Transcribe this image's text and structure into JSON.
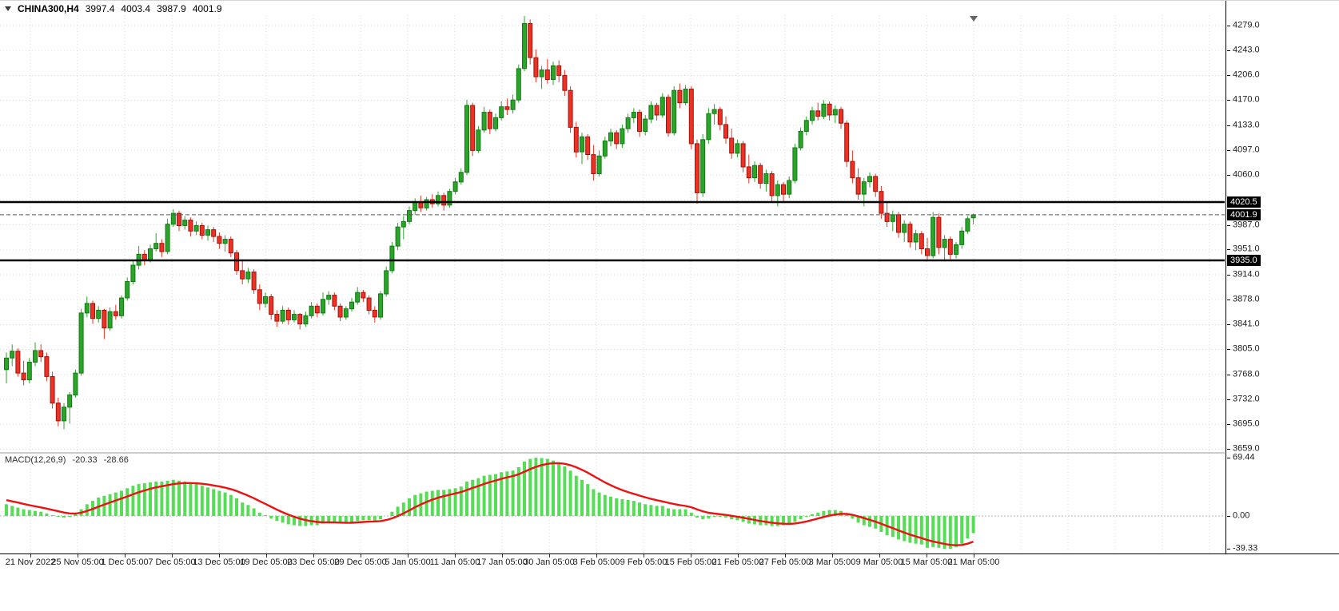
{
  "header": {
    "symbol": "CHINA300,H4",
    "open": "3997.4",
    "high": "4003.4",
    "low": "3987.9",
    "close": "4001.9"
  },
  "colors": {
    "background": "#ffffff",
    "up": "#2aa52a",
    "up_border": "#117a11",
    "down": "#ee3124",
    "down_border": "#9d140c",
    "macd_hist": "#55dd55",
    "macd_signal": "#ee1111",
    "grid": "#d8d8d8",
    "level_line": "#000000",
    "last_price_line": "#555555",
    "badge_bg": "#000000",
    "badge_text": "#ffffff",
    "axis_text": "#1b1b1b"
  },
  "chart_data": {
    "type": "candlestick",
    "title": "CHINA300,H4",
    "symbol": "CHINA300",
    "timeframe": "H4",
    "ohlc_display": "3997.4 4003.4 3987.9 4001.9",
    "price_axis": {
      "start": 4279.0,
      "step": 36.5,
      "visible_range": [
        3654,
        4294
      ],
      "labels": [
        "4279.0",
        "4243.0",
        "4206.0",
        "4170.0",
        "4133.0",
        "4097.0",
        "4060.0",
        "3987.0",
        "3951.0",
        "3914.0",
        "3878.0",
        "3841.0",
        "3805.0",
        "3768.0",
        "3732.0",
        "3695.0",
        "3659.0"
      ]
    },
    "horizontal_levels": [
      {
        "price": 4020.5,
        "label": "4020.5"
      },
      {
        "price": 3935.0,
        "label": "3935.0"
      }
    ],
    "last_price": {
      "price": 4001.9,
      "label": "4001.9"
    },
    "time_labels": [
      "21 Nov 2022",
      "25 Nov 05:00",
      "1 Dec 05:00",
      "7 Dec 05:00",
      "13 Dec 05:00",
      "19 Dec 05:00",
      "23 Dec 05:00",
      "29 Dec 05:00",
      "5 Jan 05:00",
      "11 Jan 05:00",
      "17 Jan 05:00",
      "30 Jan 05:00",
      "3 Feb 05:00",
      "9 Feb 05:00",
      "15 Feb 05:00",
      "21 Feb 05:00",
      "27 Feb 05:00",
      "3 Mar 05:00",
      "9 Mar 05:00",
      "15 Mar 05:00",
      "21 Mar 05:00"
    ],
    "candles_ohlc": [
      [
        3775,
        3800,
        3755,
        3792
      ],
      [
        3792,
        3812,
        3780,
        3802
      ],
      [
        3802,
        3806,
        3765,
        3770
      ],
      [
        3770,
        3788,
        3752,
        3760
      ],
      [
        3760,
        3792,
        3755,
        3786
      ],
      [
        3786,
        3815,
        3780,
        3803
      ],
      [
        3803,
        3812,
        3786,
        3794
      ],
      [
        3794,
        3800,
        3758,
        3765
      ],
      [
        3765,
        3772,
        3718,
        3726
      ],
      [
        3726,
        3734,
        3692,
        3700
      ],
      [
        3700,
        3726,
        3688,
        3720
      ],
      [
        3720,
        3742,
        3696,
        3738
      ],
      [
        3738,
        3775,
        3734,
        3770
      ],
      [
        3770,
        3864,
        3766,
        3858
      ],
      [
        3858,
        3882,
        3852,
        3872
      ],
      [
        3872,
        3876,
        3842,
        3850
      ],
      [
        3850,
        3868,
        3844,
        3862
      ],
      [
        3862,
        3864,
        3820,
        3836
      ],
      [
        3836,
        3866,
        3832,
        3860
      ],
      [
        3860,
        3870,
        3848,
        3854
      ],
      [
        3854,
        3884,
        3850,
        3880
      ],
      [
        3880,
        3910,
        3876,
        3904
      ],
      [
        3904,
        3934,
        3900,
        3928
      ],
      [
        3928,
        3956,
        3922,
        3944
      ],
      [
        3944,
        3950,
        3928,
        3936
      ],
      [
        3936,
        3958,
        3932,
        3952
      ],
      [
        3952,
        3975,
        3948,
        3960
      ],
      [
        3960,
        3966,
        3940,
        3948
      ],
      [
        3948,
        3996,
        3944,
        3988
      ],
      [
        3988,
        4010,
        3984,
        4004
      ],
      [
        4004,
        4008,
        3978,
        3986
      ],
      [
        3986,
        4000,
        3980,
        3994
      ],
      [
        3994,
        3998,
        3970,
        3978
      ],
      [
        3978,
        3992,
        3972,
        3986
      ],
      [
        3986,
        3990,
        3966,
        3972
      ],
      [
        3972,
        3986,
        3964,
        3980
      ],
      [
        3980,
        3984,
        3962,
        3970
      ],
      [
        3970,
        3976,
        3952,
        3960
      ],
      [
        3960,
        3972,
        3948,
        3966
      ],
      [
        3966,
        3970,
        3940,
        3946
      ],
      [
        3946,
        3950,
        3914,
        3920
      ],
      [
        3920,
        3934,
        3900,
        3908
      ],
      [
        3908,
        3924,
        3902,
        3918
      ],
      [
        3918,
        3922,
        3886,
        3892
      ],
      [
        3892,
        3900,
        3862,
        3872
      ],
      [
        3872,
        3888,
        3866,
        3882
      ],
      [
        3882,
        3886,
        3848,
        3856
      ],
      [
        3856,
        3862,
        3838,
        3846
      ],
      [
        3846,
        3868,
        3842,
        3862
      ],
      [
        3862,
        3866,
        3841,
        3848
      ],
      [
        3848,
        3862,
        3844,
        3856
      ],
      [
        3856,
        3858,
        3834,
        3842
      ],
      [
        3842,
        3860,
        3838,
        3854
      ],
      [
        3854,
        3874,
        3850,
        3868
      ],
      [
        3868,
        3872,
        3852,
        3858
      ],
      [
        3858,
        3888,
        3854,
        3878
      ],
      [
        3878,
        3890,
        3870,
        3884
      ],
      [
        3884,
        3888,
        3862,
        3868
      ],
      [
        3868,
        3872,
        3846,
        3852
      ],
      [
        3852,
        3868,
        3848,
        3864
      ],
      [
        3864,
        3880,
        3860,
        3874
      ],
      [
        3874,
        3896,
        3870,
        3888
      ],
      [
        3888,
        3892,
        3874,
        3880
      ],
      [
        3880,
        3884,
        3856,
        3862
      ],
      [
        3862,
        3868,
        3844,
        3852
      ],
      [
        3852,
        3890,
        3848,
        3886
      ],
      [
        3886,
        3926,
        3882,
        3920
      ],
      [
        3920,
        3962,
        3916,
        3956
      ],
      [
        3956,
        3990,
        3950,
        3984
      ],
      [
        3984,
        4000,
        3966,
        3992
      ],
      [
        3992,
        4014,
        3988,
        4008
      ],
      [
        4008,
        4026,
        4002,
        4020
      ],
      [
        4020,
        4030,
        4006,
        4012
      ],
      [
        4012,
        4028,
        4008,
        4024
      ],
      [
        4024,
        4032,
        4012,
        4018
      ],
      [
        4018,
        4036,
        4014,
        4030
      ],
      [
        4030,
        4034,
        4008,
        4016
      ],
      [
        4016,
        4040,
        4012,
        4036
      ],
      [
        4036,
        4056,
        4032,
        4050
      ],
      [
        4050,
        4070,
        4046,
        4064
      ],
      [
        4064,
        4170,
        4060,
        4162
      ],
      [
        4162,
        4166,
        4088,
        4096
      ],
      [
        4096,
        4132,
        4092,
        4126
      ],
      [
        4126,
        4160,
        4122,
        4152
      ],
      [
        4152,
        4156,
        4120,
        4128
      ],
      [
        4128,
        4150,
        4124,
        4144
      ],
      [
        4144,
        4168,
        4140,
        4160
      ],
      [
        4160,
        4172,
        4148,
        4156
      ],
      [
        4156,
        4178,
        4150,
        4170
      ],
      [
        4170,
        4222,
        4166,
        4216
      ],
      [
        4216,
        4293,
        4212,
        4282
      ],
      [
        4282,
        4288,
        4222,
        4232
      ],
      [
        4232,
        4244,
        4196,
        4204
      ],
      [
        4204,
        4220,
        4186,
        4214
      ],
      [
        4214,
        4230,
        4194,
        4200
      ],
      [
        4200,
        4226,
        4192,
        4220
      ],
      [
        4220,
        4228,
        4196,
        4206
      ],
      [
        4206,
        4214,
        4176,
        4184
      ],
      [
        4184,
        4190,
        4122,
        4130
      ],
      [
        4130,
        4138,
        4086,
        4094
      ],
      [
        4094,
        4122,
        4076,
        4116
      ],
      [
        4116,
        4120,
        4082,
        4090
      ],
      [
        4090,
        4104,
        4052,
        4062
      ],
      [
        4062,
        4096,
        4058,
        4088
      ],
      [
        4088,
        4116,
        4084,
        4110
      ],
      [
        4110,
        4128,
        4102,
        4122
      ],
      [
        4122,
        4126,
        4098,
        4106
      ],
      [
        4106,
        4134,
        4100,
        4128
      ],
      [
        4128,
        4150,
        4122,
        4144
      ],
      [
        4144,
        4158,
        4136,
        4152
      ],
      [
        4152,
        4156,
        4116,
        4124
      ],
      [
        4124,
        4148,
        4118,
        4142
      ],
      [
        4142,
        4168,
        4136,
        4162
      ],
      [
        4162,
        4166,
        4140,
        4148
      ],
      [
        4148,
        4180,
        4144,
        4174
      ],
      [
        4174,
        4178,
        4116,
        4122
      ],
      [
        4122,
        4190,
        4118,
        4184
      ],
      [
        4184,
        4194,
        4158,
        4166
      ],
      [
        4166,
        4192,
        4162,
        4186
      ],
      [
        4186,
        4190,
        4098,
        4106
      ],
      [
        4106,
        4112,
        4018,
        4034
      ],
      [
        4034,
        4120,
        4028,
        4112
      ],
      [
        4112,
        4158,
        4106,
        4150
      ],
      [
        4150,
        4164,
        4134,
        4156
      ],
      [
        4156,
        4160,
        4126,
        4134
      ],
      [
        4134,
        4146,
        4106,
        4114
      ],
      [
        4114,
        4128,
        4084,
        4092
      ],
      [
        4092,
        4112,
        4086,
        4106
      ],
      [
        4106,
        4110,
        4064,
        4072
      ],
      [
        4072,
        4090,
        4048,
        4056
      ],
      [
        4056,
        4080,
        4050,
        4074
      ],
      [
        4074,
        4078,
        4040,
        4048
      ],
      [
        4048,
        4068,
        4036,
        4062
      ],
      [
        4062,
        4066,
        4020,
        4030
      ],
      [
        4030,
        4052,
        4014,
        4046
      ],
      [
        4046,
        4050,
        4022,
        4032
      ],
      [
        4032,
        4058,
        4026,
        4052
      ],
      [
        4052,
        4106,
        4048,
        4100
      ],
      [
        4100,
        4130,
        4096,
        4124
      ],
      [
        4124,
        4146,
        4118,
        4140
      ],
      [
        4140,
        4160,
        4134,
        4154
      ],
      [
        4154,
        4166,
        4140,
        4146
      ],
      [
        4146,
        4170,
        4142,
        4164
      ],
      [
        4164,
        4168,
        4140,
        4148
      ],
      [
        4148,
        4162,
        4136,
        4156
      ],
      [
        4156,
        4160,
        4128,
        4136
      ],
      [
        4136,
        4140,
        4072,
        4080
      ],
      [
        4080,
        4096,
        4048,
        4056
      ],
      [
        4056,
        4070,
        4024,
        4032
      ],
      [
        4032,
        4056,
        4014,
        4050
      ],
      [
        4050,
        4064,
        4042,
        4058
      ],
      [
        4058,
        4062,
        4028,
        4036
      ],
      [
        4036,
        4044,
        3996,
        4004
      ],
      [
        4004,
        4020,
        3984,
        3992
      ],
      [
        3992,
        4008,
        3978,
        4002
      ],
      [
        4002,
        4006,
        3968,
        3976
      ],
      [
        3976,
        3994,
        3962,
        3988
      ],
      [
        3988,
        3992,
        3954,
        3962
      ],
      [
        3962,
        3980,
        3950,
        3974
      ],
      [
        3974,
        3978,
        3944,
        3952
      ],
      [
        3952,
        3968,
        3934,
        3942
      ],
      [
        3942,
        4006,
        3938,
        3998
      ],
      [
        3998,
        4004,
        3944,
        3954
      ],
      [
        3954,
        3972,
        3936,
        3966
      ],
      [
        3966,
        3970,
        3934,
        3944
      ],
      [
        3944,
        3962,
        3938,
        3958
      ],
      [
        3958,
        3984,
        3952,
        3978
      ],
      [
        3978,
        4000,
        3974,
        3996
      ],
      [
        3997.4,
        4003.4,
        3987.9,
        4001.9
      ]
    ],
    "macd": {
      "name": "MACD(12,26,9)",
      "main_value": "-20.33",
      "signal_value": "-28.66",
      "axis_labels": [
        "69.44",
        "0.00",
        "-39.33"
      ],
      "range": [
        -39.33,
        69.44
      ],
      "signal_period": 9,
      "signal_seed": 20,
      "histogram": [
        14,
        12,
        10,
        8,
        7,
        6,
        5,
        3,
        1,
        -1,
        -2,
        -1,
        2,
        8,
        14,
        18,
        22,
        24,
        26,
        28,
        30,
        33,
        36,
        38,
        39,
        40,
        41,
        41,
        42,
        43,
        42,
        41,
        39,
        38,
        36,
        34,
        32,
        30,
        28,
        25,
        21,
        16,
        13,
        9,
        4,
        1,
        -3,
        -6,
        -8,
        -10,
        -11,
        -12,
        -12,
        -11,
        -11,
        -9,
        -8,
        -8,
        -9,
        -9,
        -8,
        -6,
        -5,
        -5,
        -6,
        -4,
        0,
        5,
        11,
        16,
        21,
        25,
        27,
        29,
        30,
        31,
        31,
        32,
        33,
        35,
        41,
        43,
        45,
        48,
        49,
        50,
        52,
        53,
        54,
        58,
        65,
        68,
        69.4,
        69,
        68,
        66,
        63,
        59,
        54,
        48,
        43,
        38,
        32,
        28,
        25,
        23,
        21,
        20,
        19,
        18,
        16,
        14,
        13,
        12,
        12,
        9,
        8,
        8,
        8,
        4,
        -2,
        -4,
        -3,
        -1,
        -1,
        -2,
        -4,
        -5,
        -7,
        -9,
        -10,
        -11,
        -11,
        -12,
        -12,
        -11,
        -10,
        -7,
        -4,
        -1,
        2,
        4,
        6,
        7,
        7,
        6,
        2,
        -3,
        -8,
        -11,
        -13,
        -15,
        -19,
        -23,
        -25,
        -28,
        -30,
        -32,
        -33,
        -34,
        -38,
        -37,
        -38,
        -39,
        -39,
        -37,
        -33,
        -27,
        -20.33
      ]
    }
  }
}
